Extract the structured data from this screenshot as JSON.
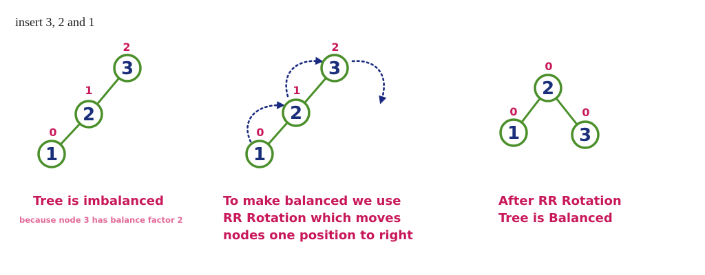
{
  "header": {
    "text": "insert 3, 2 and 1"
  },
  "panel1": {
    "caption": "Tree is imbalanced",
    "subcaption": "because node 3 has balance factor 2",
    "nodes": {
      "n3": "3",
      "n2": "2",
      "n1": "1"
    },
    "bf": {
      "n3": "2",
      "n2": "1",
      "n1": "0"
    }
  },
  "panel2": {
    "caption": [
      "To make balanced we use",
      "RR Rotation which moves",
      "nodes one position to right"
    ],
    "nodes": {
      "n3": "3",
      "n2": "2",
      "n1": "1"
    },
    "bf": {
      "n3": "2",
      "n2": "1",
      "n1": "0"
    }
  },
  "panel3": {
    "caption": [
      "After RR Rotation",
      "Tree is Balanced"
    ],
    "nodes": {
      "root": "2",
      "left": "1",
      "right": "3"
    },
    "bf": {
      "root": "0",
      "left": "0",
      "right": "0"
    }
  },
  "colors": {
    "node_stroke": "#4a8f2a",
    "node_text": "#1a2f7a",
    "balance_factor": "#c8185a",
    "arrow": "#1a2a80",
    "subcaption": "#e26a98"
  }
}
